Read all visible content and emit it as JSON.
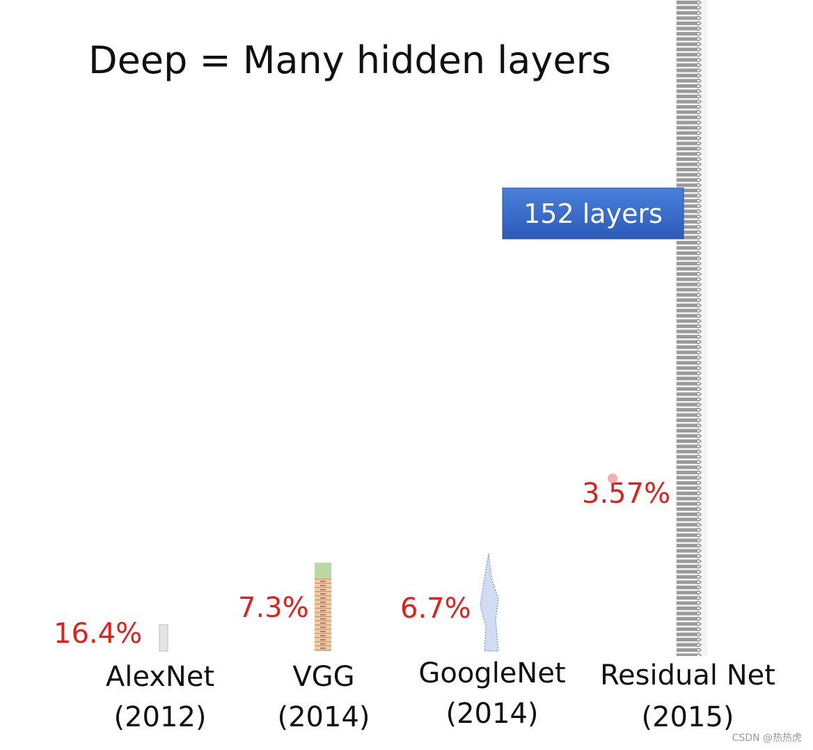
{
  "title": "Deep = Many hidden layers",
  "callout": "152 layers",
  "networks": [
    {
      "name": "AlexNet",
      "year": "(2012)",
      "error_rate": "16.4%"
    },
    {
      "name": "VGG",
      "year": "(2014)",
      "error_rate": "7.3%"
    },
    {
      "name": "GoogleNet",
      "year": "(2014)",
      "error_rate": "6.7%"
    },
    {
      "name": "Residual Net",
      "year": "(2015)",
      "error_rate": "3.57%"
    }
  ],
  "watermark": "CSDN @热热虎"
}
